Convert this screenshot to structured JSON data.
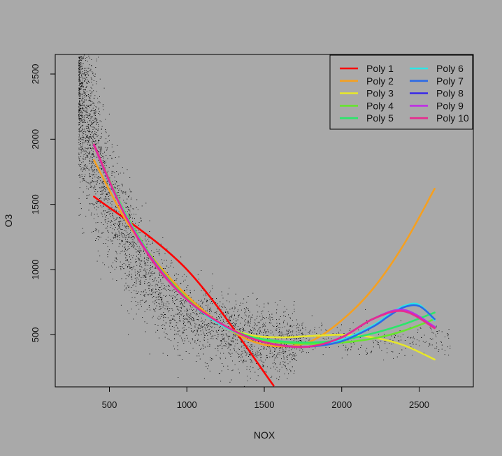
{
  "chart_data": {
    "type": "scatter",
    "title": "",
    "xlabel": "NOX",
    "ylabel": "O3",
    "xlim": [
      150,
      2850
    ],
    "ylim": [
      100,
      2650
    ],
    "xticks": [
      500,
      1000,
      1500,
      2000,
      2500
    ],
    "yticks": [
      500,
      1000,
      1500,
      2000,
      2500
    ],
    "grid": false,
    "legend": {
      "placement": "top-right",
      "columns": 2
    },
    "scatter": {
      "note": "dense point cloud",
      "x_range": [
        300,
        2700
      ],
      "y_trend": "decreasing then flat"
    },
    "series": [
      {
        "name": "Poly 1",
        "color": "#ff0000",
        "x": [
          400,
          1000,
          1560
        ],
        "y": [
          1560,
          1000,
          110
        ]
      },
      {
        "name": "Poly 2",
        "color": "#f5a020",
        "x": [
          400,
          600,
          800,
          1000,
          1200,
          1400,
          1600,
          1800,
          2000,
          2200,
          2400,
          2600
        ],
        "y": [
          1840,
          1390,
          1060,
          800,
          600,
          460,
          410,
          450,
          610,
          850,
          1190,
          1620
        ]
      },
      {
        "name": "Poly 3",
        "color": "#e6e62c",
        "x": [
          400,
          600,
          800,
          1000,
          1200,
          1400,
          1600,
          1800,
          2000,
          2200,
          2400,
          2600
        ],
        "y": [
          1940,
          1430,
          1040,
          780,
          590,
          500,
          480,
          490,
          500,
          480,
          420,
          310
        ]
      },
      {
        "name": "Poly 4",
        "color": "#66e62c",
        "x": [
          400,
          600,
          800,
          1000,
          1200,
          1400,
          1600,
          1800,
          2000,
          2200,
          2400,
          2600
        ],
        "y": [
          1950,
          1440,
          1050,
          780,
          590,
          480,
          440,
          430,
          440,
          470,
          530,
          620
        ]
      },
      {
        "name": "Poly 5",
        "color": "#2ce66a",
        "x": [
          400,
          600,
          800,
          1000,
          1200,
          1400,
          1600,
          1800,
          2000,
          2200,
          2400,
          2600
        ],
        "y": [
          1950,
          1430,
          1040,
          770,
          590,
          490,
          450,
          440,
          460,
          510,
          580,
          670
        ]
      },
      {
        "name": "Poly 6",
        "color": "#2ce6e6",
        "x": [
          400,
          600,
          800,
          1000,
          1200,
          1400,
          1600,
          1800,
          2000,
          2200,
          2300,
          2400,
          2500,
          2600
        ],
        "y": [
          1950,
          1430,
          1040,
          770,
          590,
          480,
          420,
          410,
          460,
          570,
          650,
          720,
          730,
          610
        ]
      },
      {
        "name": "Poly 7",
        "color": "#2c6ae6",
        "x": [
          400,
          600,
          800,
          1000,
          1200,
          1400,
          1600,
          1800,
          2000,
          2200,
          2300,
          2400,
          2500,
          2600
        ],
        "y": [
          1950,
          1420,
          1040,
          770,
          600,
          480,
          420,
          410,
          450,
          560,
          640,
          710,
          720,
          620
        ]
      },
      {
        "name": "Poly 8",
        "color": "#3c2ce6",
        "x": [
          400,
          600,
          800,
          1000,
          1200,
          1400,
          1600,
          1800,
          2000,
          2200,
          2400,
          2600
        ],
        "y": [
          1950,
          1420,
          1040,
          770,
          600,
          480,
          420,
          410,
          480,
          620,
          690,
          560
        ]
      },
      {
        "name": "Poly 9",
        "color": "#c02ce6",
        "x": [
          400,
          600,
          800,
          1000,
          1200,
          1400,
          1600,
          1800,
          2000,
          2200,
          2400,
          2600
        ],
        "y": [
          1950,
          1420,
          1040,
          770,
          600,
          480,
          420,
          410,
          480,
          620,
          690,
          560
        ]
      },
      {
        "name": "Poly 10",
        "color": "#e62c8f",
        "x": [
          400,
          600,
          800,
          1000,
          1200,
          1400,
          1600,
          1800,
          2000,
          2200,
          2400,
          2600
        ],
        "y": [
          1960,
          1420,
          1030,
          770,
          600,
          480,
          420,
          410,
          480,
          620,
          680,
          550
        ]
      }
    ]
  }
}
